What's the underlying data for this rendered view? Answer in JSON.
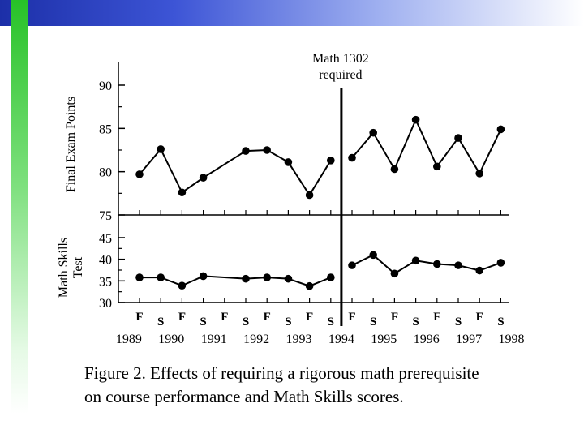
{
  "decor": {
    "top_band_colors": [
      "#1c2fa8",
      "#3d55d6",
      "#9fb0f0",
      "#ffffff"
    ],
    "left_band_colors": [
      "#27c227",
      "#7ee07e",
      "#e6fae6",
      "#ffffff"
    ]
  },
  "caption": {
    "line1": "Figure 2. Effects of requiring a rigorous math prerequisite",
    "line2": "on course performance and Math Skills scores."
  },
  "chart_data": {
    "type": "line",
    "annotation": {
      "line1": "Math 1302",
      "line2": "required",
      "x_semester_index": 9.5
    },
    "semesters": [
      "F",
      "S",
      "F",
      "S",
      "F",
      "S",
      "F",
      "S",
      "F",
      "S",
      "F",
      "S",
      "F",
      "S",
      "F",
      "S",
      "F",
      "S"
    ],
    "years": [
      "1989",
      "1990",
      "1991",
      "1992",
      "1993",
      "1994",
      "1995",
      "1996",
      "1997",
      "1998"
    ],
    "panels": [
      {
        "id": "final-exam",
        "ylabel": "Final Exam Points",
        "ylim": [
          75,
          90
        ],
        "yticks": [
          "90",
          "85",
          "80",
          "75"
        ],
        "series": [
          {
            "points": [
              [
                0,
                79.7
              ],
              [
                1,
                82.6
              ],
              [
                2,
                77.6
              ],
              [
                3,
                79.3
              ],
              [
                5,
                82.4
              ],
              [
                6,
                82.5
              ],
              [
                7,
                81.1
              ],
              [
                8,
                77.3
              ],
              [
                9,
                81.3
              ]
            ]
          },
          {
            "points": [
              [
                10,
                81.6
              ],
              [
                11,
                84.5
              ],
              [
                12,
                80.3
              ],
              [
                13,
                86.0
              ],
              [
                14,
                80.6
              ],
              [
                15,
                83.9
              ],
              [
                16,
                79.8
              ],
              [
                17,
                84.9
              ]
            ]
          }
        ]
      },
      {
        "id": "math-skills",
        "ylabel": "Math Skills Test",
        "ylim": [
          30,
          45
        ],
        "yticks": [
          "45",
          "40",
          "35",
          "30"
        ],
        "series": [
          {
            "points": [
              [
                0,
                35.8
              ],
              [
                1,
                35.8
              ],
              [
                2,
                33.9
              ],
              [
                3,
                36.1
              ],
              [
                5,
                35.5
              ],
              [
                6,
                35.8
              ],
              [
                7,
                35.5
              ],
              [
                8,
                33.8
              ],
              [
                9,
                35.8
              ]
            ]
          },
          {
            "points": [
              [
                10,
                38.6
              ],
              [
                11,
                41.0
              ],
              [
                12,
                36.7
              ],
              [
                13,
                39.7
              ],
              [
                14,
                38.9
              ],
              [
                15,
                38.6
              ],
              [
                16,
                37.4
              ],
              [
                17,
                39.2
              ]
            ]
          }
        ]
      }
    ]
  }
}
